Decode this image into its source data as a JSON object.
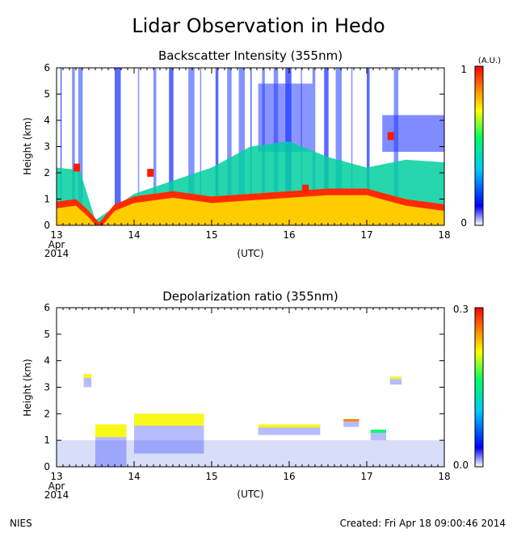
{
  "title": "Lidar Observation in Hedo",
  "footer": {
    "left": "NIES",
    "right": "Created: Fri Apr 18 09:00:46 2014"
  },
  "panels": {
    "top": {
      "title": "Backscatter Intensity (355nm)",
      "ylabel": "Height (km)",
      "xlabel": "(UTC)",
      "colorbar": {
        "unit": "(A.U.)",
        "min_label": "0",
        "max_label": "1"
      }
    },
    "bottom": {
      "title": "Depolarization ratio (355nm)",
      "ylabel": "Height (km)",
      "xlabel": "(UTC)",
      "colorbar": {
        "min_label": "0.0",
        "max_label": "0.3"
      }
    }
  },
  "axes": {
    "x_ticks": [
      "13",
      "14",
      "15",
      "16",
      "17",
      "18"
    ],
    "x_start_label": [
      "Apr",
      "2014"
    ],
    "y_ticks": [
      "0",
      "1",
      "2",
      "3",
      "4",
      "5",
      "6"
    ]
  },
  "chart_data": [
    {
      "type": "heatmap",
      "title": "Backscatter Intensity (355nm)",
      "xlabel": "(UTC)",
      "ylabel": "Height (km)",
      "xlim": [
        13,
        18
      ],
      "ylim": [
        0,
        6
      ],
      "colorbar_range": [
        0,
        1
      ],
      "colorbar_unit": "(A.U.)",
      "colormap": [
        "#ffffff",
        "#0000ff",
        "#00c8ff",
        "#00ff60",
        "#ffff00",
        "#ff8000",
        "#ff0000"
      ],
      "layers": [
        {
          "x": [
            13.0,
            13.25,
            13.4,
            13.55,
            13.75,
            14.0,
            14.5,
            15.0,
            15.5,
            16.0,
            16.5,
            17.0,
            17.5,
            18.0
          ],
          "top_km": [
            0.9,
            1.0,
            0.6,
            0.1,
            0.8,
            1.1,
            1.3,
            1.1,
            1.2,
            1.3,
            1.4,
            1.4,
            1.0,
            0.8
          ]
        },
        {
          "x": [
            13.0,
            13.3,
            13.5,
            14.0,
            15.0,
            15.5,
            16.0,
            16.5,
            17.0,
            17.5,
            18.0
          ],
          "top_km": [
            2.2,
            2.1,
            0.2,
            1.2,
            2.2,
            3.0,
            3.2,
            2.6,
            2.2,
            2.5,
            2.4
          ]
        }
      ],
      "cloud_patches_km": [
        {
          "x": 13.25,
          "height": 2.2
        },
        {
          "x": 14.2,
          "height": 2.0
        },
        {
          "x": 16.2,
          "height": 1.4
        },
        {
          "x": 17.3,
          "height": 3.4
        }
      ]
    },
    {
      "type": "heatmap",
      "title": "Depolarization ratio (355nm)",
      "xlabel": "(UTC)",
      "ylabel": "Height (km)",
      "xlim": [
        13,
        18
      ],
      "ylim": [
        0,
        6
      ],
      "colorbar_range": [
        0.0,
        0.3
      ],
      "colormap": [
        "#ffffff",
        "#0000ff",
        "#00c8ff",
        "#00ff60",
        "#ffff00",
        "#ff8000",
        "#ff0000"
      ],
      "background_km": [
        0,
        1.0
      ],
      "features": [
        {
          "x": [
            13.35,
            13.45
          ],
          "height_km": [
            3.0,
            3.5
          ],
          "value": 0.15
        },
        {
          "x": [
            13.5,
            13.9
          ],
          "height_km": [
            0.0,
            1.6
          ],
          "value": 0.18
        },
        {
          "x": [
            14.0,
            14.9
          ],
          "height_km": [
            0.5,
            2.0
          ],
          "value": 0.16
        },
        {
          "x": [
            15.6,
            16.4
          ],
          "height_km": [
            1.2,
            1.6
          ],
          "value": 0.2
        },
        {
          "x": [
            16.7,
            16.9
          ],
          "height_km": [
            1.5,
            1.8
          ],
          "value": 0.22
        },
        {
          "x": [
            17.05,
            17.25
          ],
          "height_km": [
            1.0,
            1.4
          ],
          "value": 0.12
        },
        {
          "x": [
            17.3,
            17.45
          ],
          "height_km": [
            3.1,
            3.4
          ],
          "value": 0.2
        }
      ]
    }
  ]
}
